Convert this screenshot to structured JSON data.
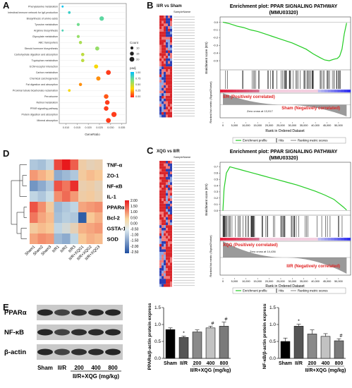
{
  "figure": {
    "panels": {
      "A": "A",
      "B": "B",
      "C": "C",
      "D": "D",
      "E": "E"
    }
  },
  "panelA": {
    "pathways": [
      "Phenylalanine metabolism",
      "Intestinal immune network for IgA production",
      "Biosynthesis of amino acids",
      "Tyrosine metabolism",
      "Arginine biosynthesis",
      "Glyoxylate metabolism",
      "ABC transporters",
      "Steroid hormone biosynthesis",
      "Carbohydrate digestion and absorption",
      "Tryptophan metabolism",
      "ECM-receptor interaction",
      "Carbon metabolism",
      "Chemical carcinogenesis",
      "Fat digestion and absorption",
      "Proximal tubule bicarbonate reclamation",
      "Peroxisome",
      "Retinol metabolism",
      "PPAR signaling pathway",
      "Protein digestion and absorption",
      "Mineral absorption"
    ],
    "xlabel": "GeneRatio",
    "xticks": [
      "0.010",
      "0.015",
      "0.020",
      "0.025",
      "0.030",
      "0.035"
    ],
    "legend_count_title": "Count",
    "legend_counts": [
      "10",
      "15",
      "20"
    ],
    "legend_padj_title": "padj",
    "legend_padj": [
      "1.00",
      "0.75",
      "0.50",
      "0.25",
      "0.00"
    ]
  },
  "chart_data": [
    {
      "type": "scatter",
      "xlabel": "GeneRatio",
      "xlim": [
        0.007,
        0.037
      ],
      "categories": [
        "Phenylalanine metabolism",
        "Intestinal immune network for IgA production",
        "Biosynthesis of amino acids",
        "Tyrosine metabolism",
        "Arginine biosynthesis",
        "Glyoxylate metabolism",
        "ABC transporters",
        "Steroid hormone biosynthesis",
        "Carbohydrate digestion and absorption",
        "Tryptophan metabolism",
        "ECM-receptor interaction",
        "Carbon metabolism",
        "Chemical carcinogenesis",
        "Fat digestion and absorption",
        "Proximal tubule bicarbonate reclamation",
        "Peroxisome",
        "Retinol metabolism",
        "PPAR signaling pathway",
        "Protein digestion and absorption",
        "Mineral absorption"
      ],
      "gene_ratio": [
        0.0085,
        0.0115,
        0.026,
        0.0155,
        0.0085,
        0.0155,
        0.0165,
        0.024,
        0.0175,
        0.0175,
        0.0235,
        0.029,
        0.0245,
        0.0165,
        0.0115,
        0.028,
        0.0285,
        0.028,
        0.0315,
        0.029
      ],
      "count": [
        5,
        8,
        18,
        10,
        5,
        10,
        11,
        16,
        12,
        12,
        16,
        20,
        17,
        11,
        8,
        19,
        19,
        19,
        22,
        20
      ],
      "padj": [
        0.95,
        0.85,
        0.75,
        0.7,
        0.8,
        0.6,
        0.55,
        0.6,
        0.5,
        0.5,
        0.35,
        0.05,
        0.2,
        0.2,
        0.35,
        0.1,
        0.05,
        0.05,
        0.05,
        0.05
      ]
    },
    {
      "type": "line",
      "title": "Enrichment plot: PPAR SIGNALING PATHWAY (MMU03320)",
      "ylabel": "Enrichment score (ES)",
      "ylim": [
        -0.6,
        0.05
      ],
      "yticks": [
        "0.0",
        "-0.1",
        "-0.2",
        "-0.3",
        "-0.4",
        "-0.5"
      ],
      "x": [
        0,
        3000,
        6000,
        9000,
        12000,
        15000,
        18000,
        21000,
        24000,
        27000,
        30000,
        33000,
        36000,
        39000,
        42000,
        44000,
        46000,
        48000,
        49500,
        50500,
        51500,
        52500,
        53500
      ],
      "y": [
        0,
        -0.02,
        -0.05,
        -0.07,
        -0.1,
        -0.12,
        -0.15,
        -0.18,
        -0.21,
        -0.24,
        -0.27,
        -0.31,
        -0.35,
        -0.41,
        -0.46,
        -0.49,
        -0.5,
        -0.48,
        -0.47,
        -0.44,
        -0.35,
        -0.15,
        -0.01
      ]
    },
    {
      "type": "line",
      "title": "Enrichment plot: PPAR SIGNALING PATHWAY (MMU03320)",
      "ylabel": "Enrichment score (ES)",
      "ylim": [
        -0.05,
        0.75
      ],
      "yticks": [
        "0.7",
        "0.6",
        "0.5",
        "0.4",
        "0.3",
        "0.2",
        "0.1",
        "0.0"
      ],
      "x": [
        0,
        500,
        1500,
        3000,
        5000,
        8000,
        11000,
        14000,
        17000,
        20000,
        24000,
        28000,
        32000,
        36000,
        40000,
        44000,
        48000,
        50000,
        52000,
        53500
      ],
      "y": [
        0,
        0.35,
        0.6,
        0.7,
        0.68,
        0.65,
        0.62,
        0.59,
        0.56,
        0.53,
        0.49,
        0.45,
        0.41,
        0.36,
        0.31,
        0.25,
        0.18,
        0.12,
        0.06,
        0.01
      ]
    },
    {
      "type": "heatmap",
      "rows": [
        "TNF-α",
        "ZO-1",
        "NF-κB",
        "IL-1",
        "PPARα",
        "Bcl-2",
        "GSTA-1",
        "SOD"
      ],
      "columns": [
        "Sham1",
        "Sham2",
        "Sham3",
        "II/R1",
        "II/R2",
        "II/R3",
        "II/R+XQG1",
        "II/R+XQG2",
        "II/R+XQG3"
      ],
      "scale_ticks": [
        "2.00",
        "1.50",
        "1.00",
        "0.50",
        "0.00",
        "-0.50",
        "-1.00",
        "-1.50",
        "-2.00",
        "-2.50"
      ],
      "values": [
        [
          -0.8,
          -0.9,
          -0.6,
          1.6,
          2.0,
          1.4,
          0.3,
          0.1,
          0.2
        ],
        [
          0.9,
          0.7,
          0.5,
          -1.2,
          -1.0,
          -0.8,
          0.4,
          0.6,
          0.5
        ],
        [
          -1.5,
          -1.2,
          -0.8,
          1.5,
          1.2,
          1.8,
          0.2,
          0.3,
          0.1
        ],
        [
          -0.6,
          -0.8,
          -0.5,
          1.0,
          1.3,
          0.9,
          0.3,
          0.4,
          0.2
        ],
        [
          1.5,
          1.0,
          0.4,
          -1.0,
          -0.8,
          -0.6,
          0.8,
          0.9,
          1.0
        ],
        [
          1.2,
          0.8,
          0.6,
          -0.9,
          -0.7,
          -0.8,
          -2.3,
          0.5,
          0.7
        ],
        [
          0.4,
          0.6,
          0.5,
          -0.6,
          -0.3,
          0.1,
          0.7,
          0.8,
          0.9
        ],
        [
          0.8,
          1.0,
          0.9,
          -1.0,
          -1.2,
          -0.6,
          0.5,
          0.7,
          0.6
        ]
      ]
    },
    {
      "type": "bar",
      "ylabel": "PPARα/β-actin protein expression",
      "categories": [
        "Sham",
        "II/R",
        "200",
        "400",
        "800"
      ],
      "group_label": "II/R+XQG (mg/kg)",
      "values": [
        0.85,
        0.62,
        0.78,
        0.9,
        0.95
      ],
      "errors": [
        0.05,
        0.04,
        0.06,
        0.05,
        0.12
      ],
      "marks": [
        "",
        "*",
        "",
        "#",
        "#"
      ],
      "ylim": [
        0,
        1.5
      ],
      "yticks": [
        "0.0",
        "0.5",
        "1.0",
        "1.5"
      ]
    },
    {
      "type": "bar",
      "ylabel": "NF-κB/β-actin protein expression",
      "categories": [
        "Sham",
        "II/R",
        "200",
        "400",
        "800"
      ],
      "group_label": "II/R+XQG (mg/kg)",
      "values": [
        0.5,
        0.95,
        0.72,
        0.65,
        0.52
      ],
      "errors": [
        0.1,
        0.06,
        0.12,
        0.08,
        0.06
      ],
      "marks": [
        "",
        "*",
        "",
        "",
        "#"
      ],
      "ylim": [
        0,
        1.5
      ],
      "yticks": [
        "0.0",
        "0.5",
        "1.0",
        "1.5"
      ]
    }
  ],
  "panelB": {
    "heat_title": "II/R vs Sham",
    "heat_header": "SampleName",
    "title_line1": "Enrichment plot: PPAR SIGNALING PATHWAY",
    "title_line2": "(MMU03320)",
    "ylabel_top": "Enrichment score (ES)",
    "ylabel_bottom": "Ranked list metric (Signal2Noise)",
    "pos_label": "II/R (Positively correlated)",
    "neg_label": "Sham (Negatively correlated)",
    "zero_cross": "Zero cross at 13,917",
    "xlabel": "Rank in Ordered Dataset",
    "xticks": [
      "0",
      "5,000",
      "10,000",
      "15,000",
      "20,000",
      "25,000",
      "30,000",
      "35,000",
      "40,000",
      "45,000",
      "50,000"
    ],
    "legend": [
      "Enrichment profile",
      "Hits",
      "Ranking metric scores"
    ],
    "green": "#22cc22"
  },
  "panelC": {
    "heat_title": "XQG vs II/R",
    "heat_header": "SampleName",
    "title_line1": "Enrichment plot: PPAR SIGNALING PATHWAY",
    "title_line2": "(MMU03320)",
    "ylabel_top": "Enrichment score (ES)",
    "ylabel_bottom": "Ranked list metric (Signal2Noise)",
    "pos_label": "XQG (Positively correlated)",
    "neg_label": "II/R (Negatively correlated)",
    "zero_cross": "Zero cross at 14,436",
    "xlabel": "Rank in Ordered Dataset",
    "xticks": [
      "0",
      "5,000",
      "10,000",
      "15,000",
      "20,000",
      "25,000",
      "30,000",
      "35,000",
      "40,000",
      "45,000",
      "50,000"
    ],
    "legend": [
      "Enrichment profile",
      "Hits",
      "Ranking metric scores"
    ]
  },
  "panelE": {
    "bands": [
      "PPARα",
      "NF-κB",
      "β-actin"
    ],
    "lanes": [
      "Sham",
      "II/R",
      "200",
      "400",
      "800"
    ],
    "group_label": "II/R+XQG (mg/kg)",
    "bar_colors": [
      "#000000",
      "#555555",
      "#8a8a8a",
      "#c2c2c2",
      "#7a7a7a"
    ]
  }
}
